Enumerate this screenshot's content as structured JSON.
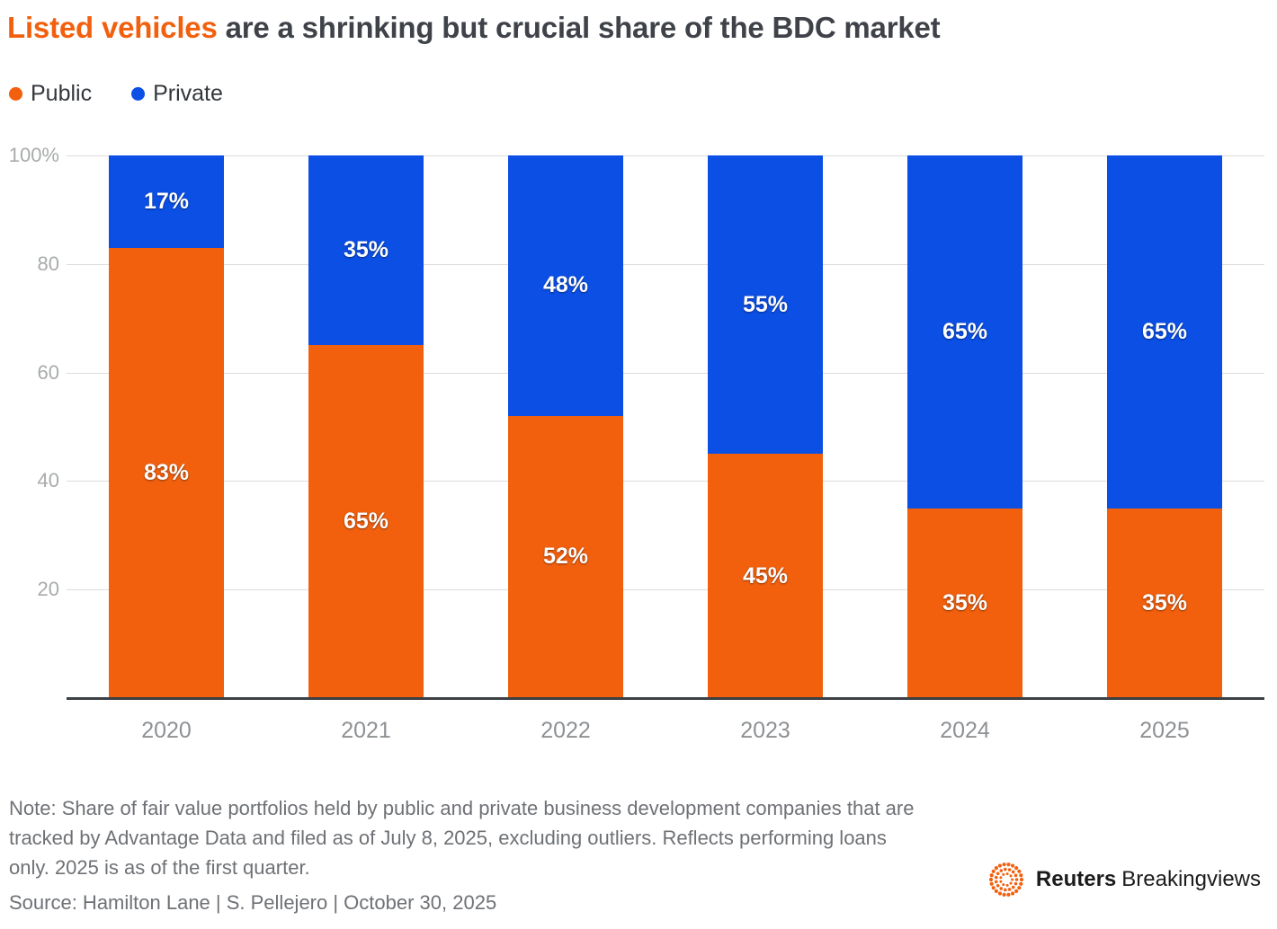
{
  "title": {
    "highlight": "Listed vehicles",
    "rest": " are a shrinking but crucial share of the BDC market"
  },
  "legend": [
    {
      "label": "Public",
      "color": "#F2600E"
    },
    {
      "label": "Private",
      "color": "#0B4FE5"
    }
  ],
  "chart_data": {
    "type": "bar",
    "stacked": true,
    "title": "Listed vehicles are a shrinking but crucial share of the BDC market",
    "categories": [
      "2020",
      "2021",
      "2022",
      "2023",
      "2024",
      "2025"
    ],
    "series": [
      {
        "name": "Public",
        "color": "#F2600E",
        "values": [
          83,
          65,
          52,
          45,
          35,
          35
        ],
        "labels": [
          "83%",
          "65%",
          "52%",
          "45%",
          "35%",
          "35%"
        ]
      },
      {
        "name": "Private",
        "color": "#0B4FE5",
        "values": [
          17,
          35,
          48,
          55,
          65,
          65
        ],
        "labels": [
          "17%",
          "35%",
          "48%",
          "55%",
          "65%",
          "65%"
        ]
      }
    ],
    "ylim": [
      0,
      100
    ],
    "yticks": [
      {
        "value": 100,
        "label": "100%"
      },
      {
        "value": 80,
        "label": "80"
      },
      {
        "value": 60,
        "label": "60"
      },
      {
        "value": 40,
        "label": "40"
      },
      {
        "value": 20,
        "label": "20"
      }
    ],
    "grid": true,
    "legend_position": "top-left"
  },
  "note": {
    "text": "Note: Share of fair value portfolios held by public and private business development companies that are tracked by Advantage Data and filed as of July 8, 2025, excluding outliers. Reflects performing loans only.  2025 is as of the first quarter.",
    "source": "Source: Hamilton Lane | S. Pellejero | October 30, 2025"
  },
  "branding": {
    "bold": "Reuters",
    "regular": "Breakingviews",
    "logo_color": "#F2600E"
  }
}
